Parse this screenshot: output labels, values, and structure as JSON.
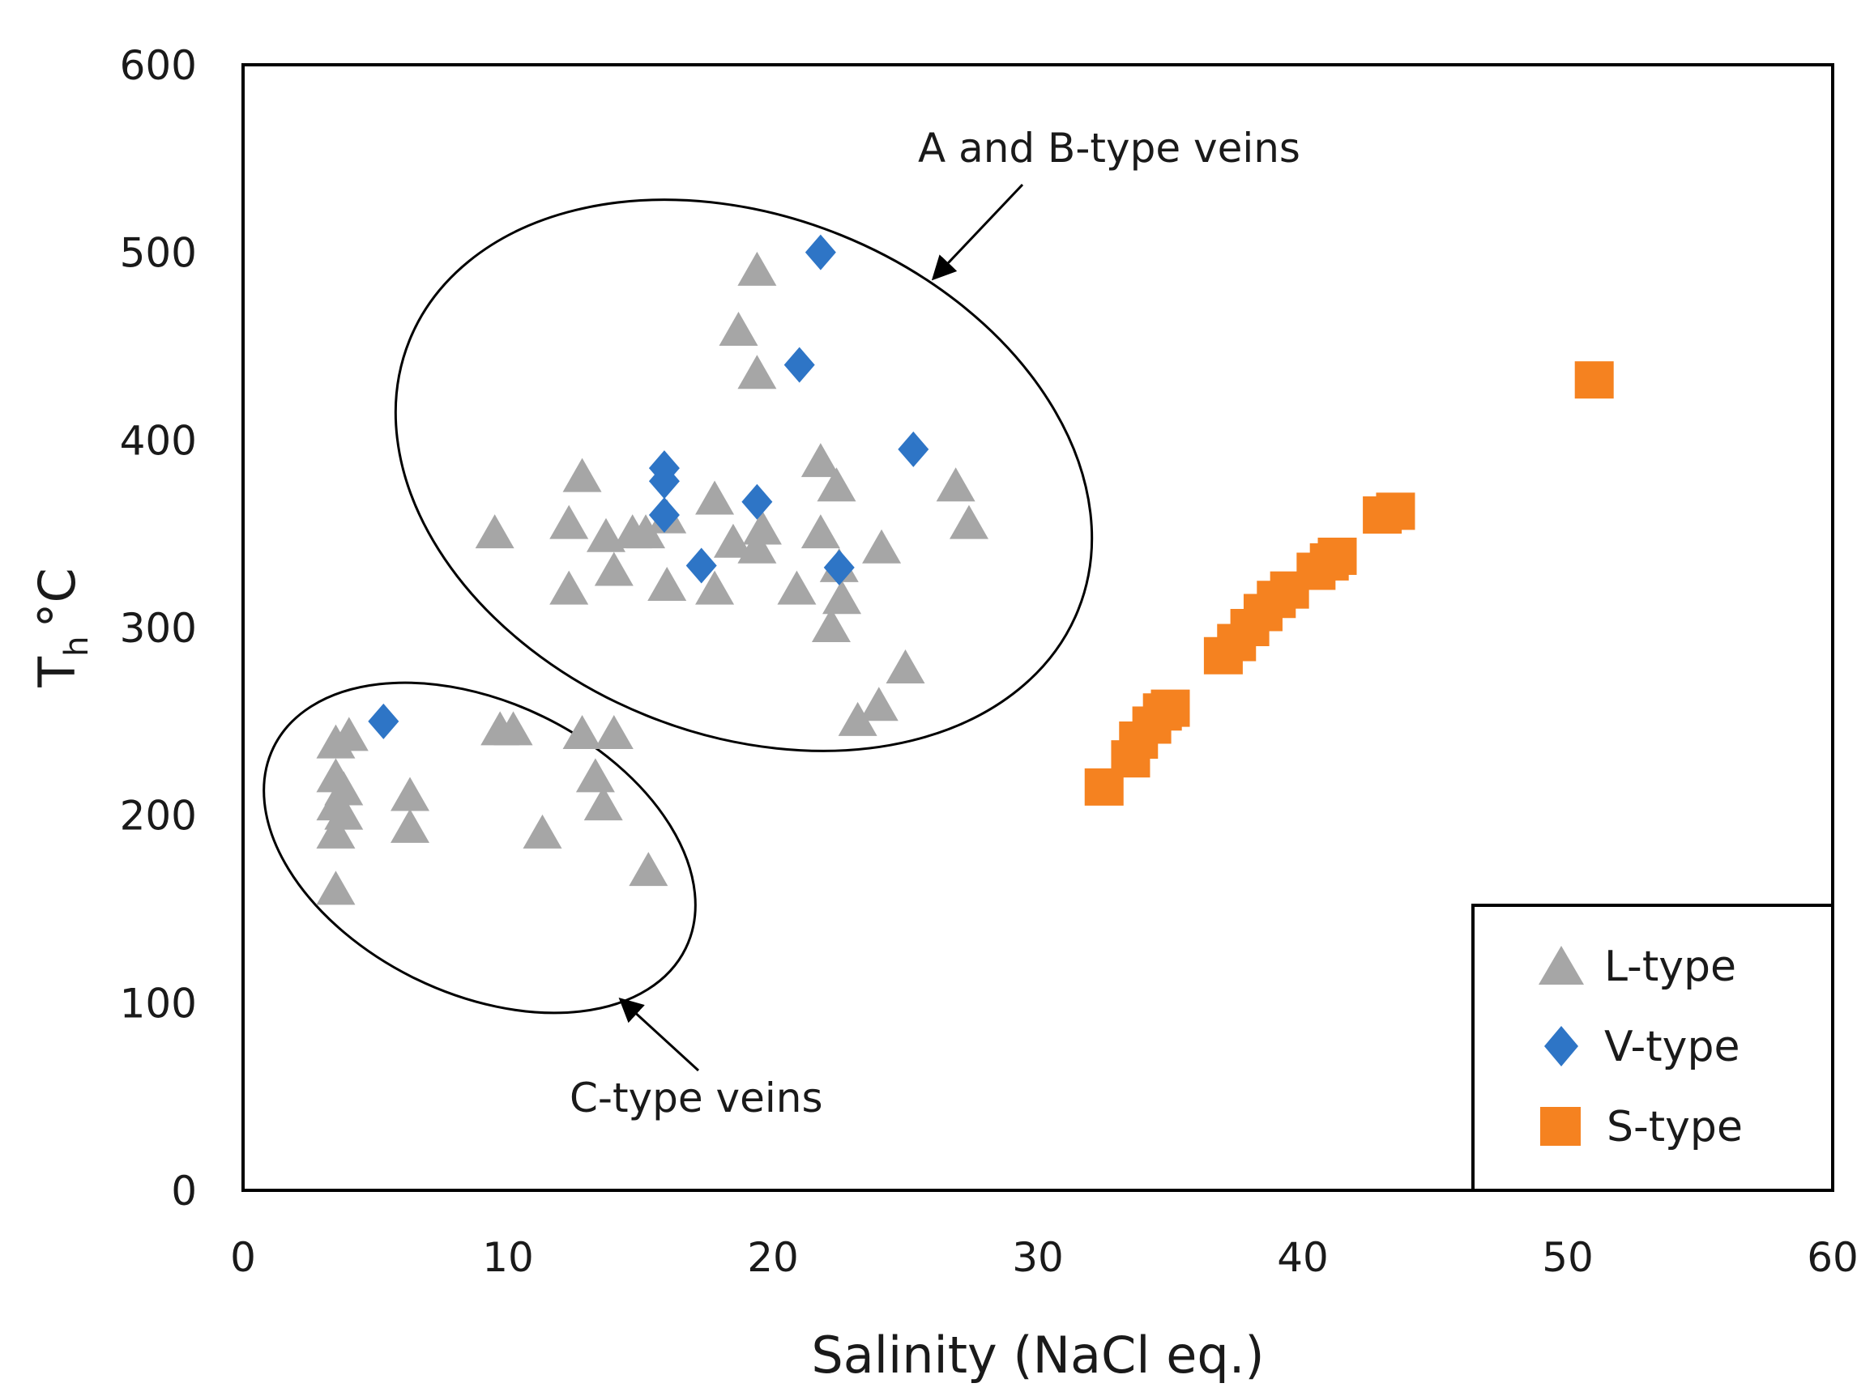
{
  "chart_data": {
    "type": "scatter",
    "xlabel": "Salinity (NaCl eq.)",
    "ylabel_main": "T",
    "ylabel_sub": "h",
    "ylabel_unit": "°C",
    "xlim": [
      0,
      60
    ],
    "ylim": [
      0,
      600
    ],
    "xticks": [
      "0",
      "10",
      "20",
      "30",
      "40",
      "50",
      "60"
    ],
    "yticks": [
      "0",
      "100",
      "200",
      "300",
      "400",
      "500",
      "600"
    ],
    "grid": false,
    "legend_position": "bottom-right",
    "series": [
      {
        "name": "L-type",
        "marker": "triangle",
        "color": "#a6a6a6",
        "points": [
          [
            3.5,
            160
          ],
          [
            3.5,
            190
          ],
          [
            3.5,
            205
          ],
          [
            3.5,
            220
          ],
          [
            3.5,
            238
          ],
          [
            3.8,
            213
          ],
          [
            3.8,
            200
          ],
          [
            4,
            242
          ],
          [
            6.3,
            193
          ],
          [
            6.3,
            210
          ],
          [
            9.5,
            350
          ],
          [
            9.7,
            245
          ],
          [
            10.2,
            245
          ],
          [
            11.3,
            190
          ],
          [
            12.3,
            320
          ],
          [
            12.3,
            355
          ],
          [
            12.8,
            380
          ],
          [
            12.8,
            243
          ],
          [
            13.3,
            220
          ],
          [
            13.6,
            205
          ],
          [
            13.7,
            348
          ],
          [
            14,
            330
          ],
          [
            14,
            243
          ],
          [
            14.7,
            350
          ],
          [
            15.2,
            350
          ],
          [
            15.3,
            170
          ],
          [
            16,
            358
          ],
          [
            16,
            322
          ],
          [
            17.8,
            368
          ],
          [
            17.8,
            320
          ],
          [
            18.5,
            345
          ],
          [
            18.7,
            458
          ],
          [
            19.4,
            490
          ],
          [
            19.4,
            435
          ],
          [
            19.4,
            342
          ],
          [
            19.6,
            352
          ],
          [
            20.9,
            320
          ],
          [
            21.8,
            388
          ],
          [
            21.8,
            350
          ],
          [
            22.2,
            300
          ],
          [
            22.4,
            375
          ],
          [
            22.5,
            332
          ],
          [
            22.6,
            315
          ],
          [
            23.2,
            250
          ],
          [
            24,
            258
          ],
          [
            24.1,
            342
          ],
          [
            25,
            278
          ],
          [
            26.9,
            375
          ],
          [
            27.4,
            355
          ]
        ]
      },
      {
        "name": "V-type",
        "marker": "diamond",
        "color": "#2e75c6",
        "points": [
          [
            5.3,
            250
          ],
          [
            15.9,
            385
          ],
          [
            15.9,
            378
          ],
          [
            15.9,
            360
          ],
          [
            17.3,
            333
          ],
          [
            19.4,
            367
          ],
          [
            21,
            440
          ],
          [
            21.8,
            500
          ],
          [
            22.5,
            332
          ],
          [
            25.3,
            395
          ]
        ]
      },
      {
        "name": "S-type",
        "marker": "square",
        "color": "#f58220",
        "points": [
          [
            32.5,
            215
          ],
          [
            33.5,
            230
          ],
          [
            33.8,
            240
          ],
          [
            34.3,
            248
          ],
          [
            34.7,
            255
          ],
          [
            35,
            257
          ],
          [
            37,
            285
          ],
          [
            37.5,
            292
          ],
          [
            38,
            300
          ],
          [
            38.5,
            308
          ],
          [
            39,
            315
          ],
          [
            39.5,
            320
          ],
          [
            40.5,
            330
          ],
          [
            41,
            335
          ],
          [
            41.3,
            338
          ],
          [
            43,
            360
          ],
          [
            43.5,
            362
          ],
          [
            51,
            432
          ]
        ]
      }
    ],
    "annotations": [
      {
        "text": "A and B-type veins"
      },
      {
        "text": "C-type veins"
      }
    ]
  }
}
